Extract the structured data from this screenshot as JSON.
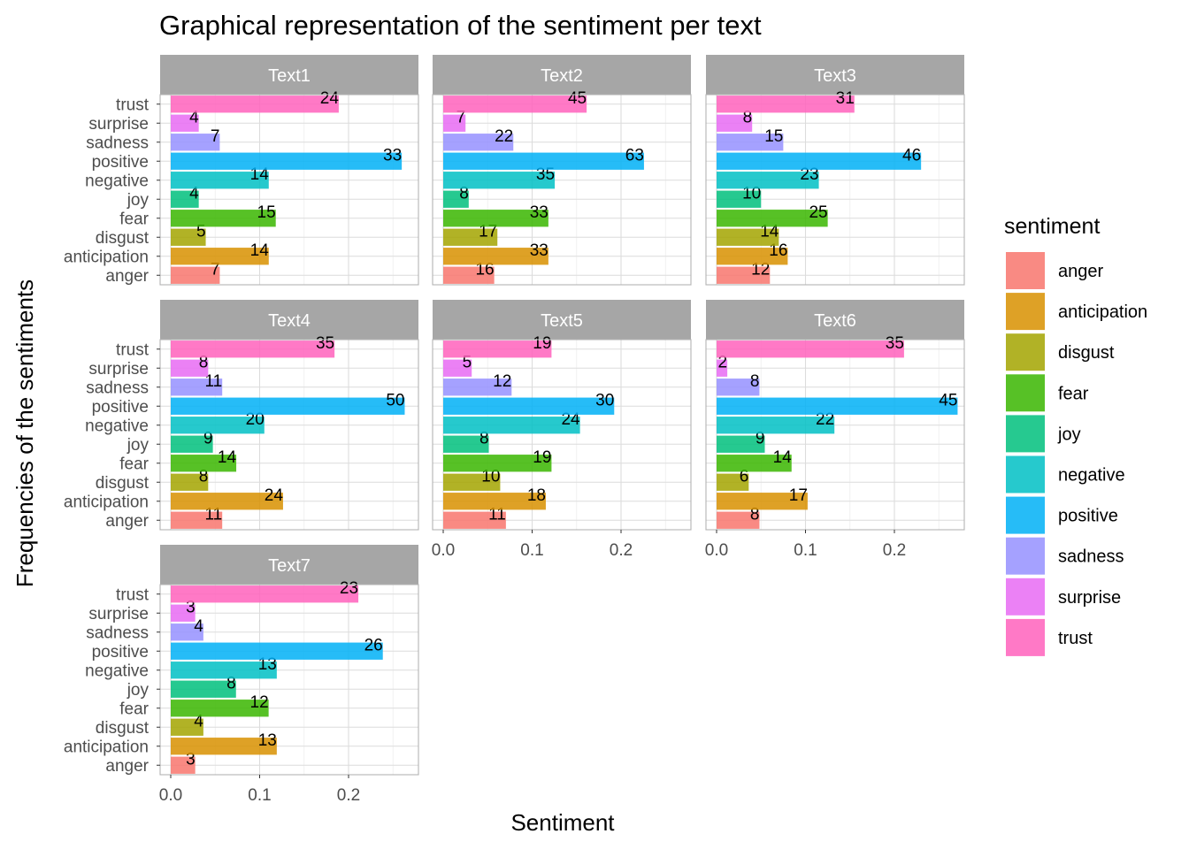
{
  "chart_data": {
    "type": "bar",
    "orientation": "horizontal",
    "title": "Graphical representation of the sentiment per text",
    "xlabel": "Sentiment",
    "ylabel": "Frequencies of the sentiments",
    "xlim": [
      0,
      0.28
    ],
    "x_ticks": [
      "0.0",
      "0.1",
      "0.2"
    ],
    "grid": true,
    "legend": {
      "title": "sentiment",
      "position": "right",
      "entries": [
        "anger",
        "anticipation",
        "disgust",
        "fear",
        "joy",
        "negative",
        "positive",
        "sadness",
        "surprise",
        "trust"
      ]
    },
    "categories": [
      "anger",
      "anticipation",
      "disgust",
      "fear",
      "joy",
      "negative",
      "positive",
      "sadness",
      "surprise",
      "trust"
    ],
    "colors": {
      "anger": "#F8766D",
      "anticipation": "#D89000",
      "disgust": "#A3A500",
      "fear": "#39B600",
      "joy": "#00BF7D",
      "negative": "#00BFC4",
      "positive": "#00B0F6",
      "sadness": "#9590FF",
      "surprise": "#E76BF3",
      "trust": "#FF62BC"
    },
    "panels": [
      {
        "name": "Text1",
        "counts": [
          7,
          14,
          5,
          15,
          4,
          14,
          33,
          7,
          4,
          24
        ]
      },
      {
        "name": "Text2",
        "counts": [
          16,
          33,
          17,
          33,
          8,
          35,
          63,
          22,
          7,
          45
        ]
      },
      {
        "name": "Text3",
        "counts": [
          12,
          16,
          14,
          25,
          10,
          23,
          46,
          15,
          8,
          31
        ]
      },
      {
        "name": "Text4",
        "counts": [
          11,
          24,
          8,
          14,
          9,
          20,
          50,
          11,
          8,
          35
        ]
      },
      {
        "name": "Text5",
        "counts": [
          11,
          18,
          10,
          19,
          8,
          24,
          30,
          12,
          5,
          19
        ]
      },
      {
        "name": "Text6",
        "counts": [
          8,
          17,
          6,
          14,
          9,
          22,
          45,
          8,
          2,
          35
        ]
      },
      {
        "name": "Text7",
        "counts": [
          3,
          13,
          4,
          12,
          8,
          13,
          26,
          4,
          3,
          23
        ]
      }
    ]
  }
}
